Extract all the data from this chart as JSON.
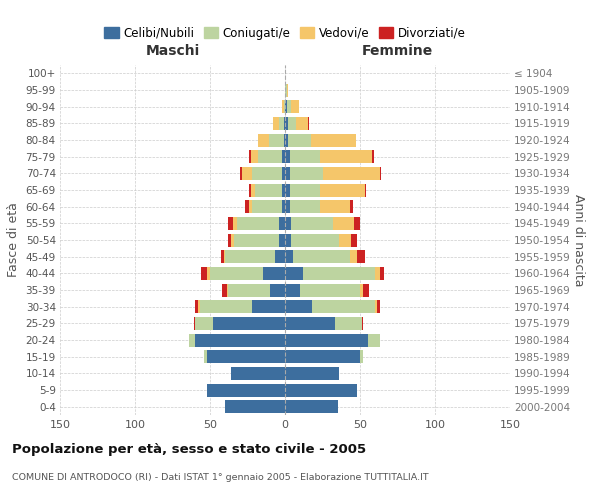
{
  "age_groups": [
    "0-4",
    "5-9",
    "10-14",
    "15-19",
    "20-24",
    "25-29",
    "30-34",
    "35-39",
    "40-44",
    "45-49",
    "50-54",
    "55-59",
    "60-64",
    "65-69",
    "70-74",
    "75-79",
    "80-84",
    "85-89",
    "90-94",
    "95-99",
    "100+"
  ],
  "birth_years": [
    "2000-2004",
    "1995-1999",
    "1990-1994",
    "1985-1989",
    "1980-1984",
    "1975-1979",
    "1970-1974",
    "1965-1969",
    "1960-1964",
    "1955-1959",
    "1950-1954",
    "1945-1949",
    "1940-1944",
    "1935-1939",
    "1930-1934",
    "1925-1929",
    "1920-1924",
    "1915-1919",
    "1910-1914",
    "1905-1909",
    "≤ 1904"
  ],
  "maschi_celibi": [
    40,
    52,
    36,
    52,
    60,
    48,
    22,
    10,
    15,
    7,
    4,
    4,
    2,
    2,
    2,
    2,
    1,
    1,
    0,
    0,
    0
  ],
  "maschi_coniugati": [
    0,
    0,
    0,
    2,
    4,
    12,
    35,
    28,
    35,
    33,
    30,
    28,
    20,
    18,
    20,
    16,
    10,
    3,
    1,
    0,
    0
  ],
  "maschi_vedovi": [
    0,
    0,
    0,
    0,
    0,
    0,
    1,
    1,
    2,
    1,
    2,
    3,
    2,
    3,
    7,
    5,
    7,
    4,
    1,
    0,
    0
  ],
  "maschi_divorziati": [
    0,
    0,
    0,
    0,
    0,
    1,
    2,
    3,
    4,
    2,
    2,
    3,
    3,
    1,
    1,
    1,
    0,
    0,
    0,
    0,
    0
  ],
  "femmine_celibi": [
    35,
    48,
    36,
    50,
    55,
    33,
    18,
    10,
    12,
    5,
    4,
    4,
    3,
    3,
    3,
    3,
    2,
    2,
    1,
    0,
    0
  ],
  "femmine_coniugati": [
    0,
    0,
    0,
    2,
    8,
    18,
    42,
    40,
    48,
    38,
    32,
    28,
    20,
    20,
    22,
    20,
    15,
    5,
    3,
    1,
    0
  ],
  "femmine_vedovi": [
    0,
    0,
    0,
    0,
    0,
    0,
    1,
    2,
    3,
    5,
    8,
    14,
    20,
    30,
    38,
    35,
    30,
    8,
    5,
    1,
    0
  ],
  "femmine_divorziati": [
    0,
    0,
    0,
    0,
    0,
    1,
    2,
    4,
    3,
    5,
    4,
    4,
    2,
    1,
    1,
    1,
    0,
    1,
    0,
    0,
    0
  ],
  "colors": {
    "celibi": "#3d6e9e",
    "coniugati": "#bdd4a0",
    "vedovi": "#f5c66a",
    "divorziati": "#cc2222"
  },
  "xlim": 150,
  "title": "Popolazione per età, sesso e stato civile - 2005",
  "subtitle": "COMUNE DI ANTRODOCO (RI) - Dati ISTAT 1° gennaio 2005 - Elaborazione TUTTITALIA.IT",
  "xlabel_left": "Maschi",
  "xlabel_right": "Femmine",
  "ylabel_left": "Fasce di età",
  "ylabel_right": "Anni di nascita",
  "legend_labels": [
    "Celibi/Nubili",
    "Coniugati/e",
    "Vedovi/e",
    "Divorziati/e"
  ],
  "background_color": "#ffffff",
  "grid_color": "#cccccc"
}
